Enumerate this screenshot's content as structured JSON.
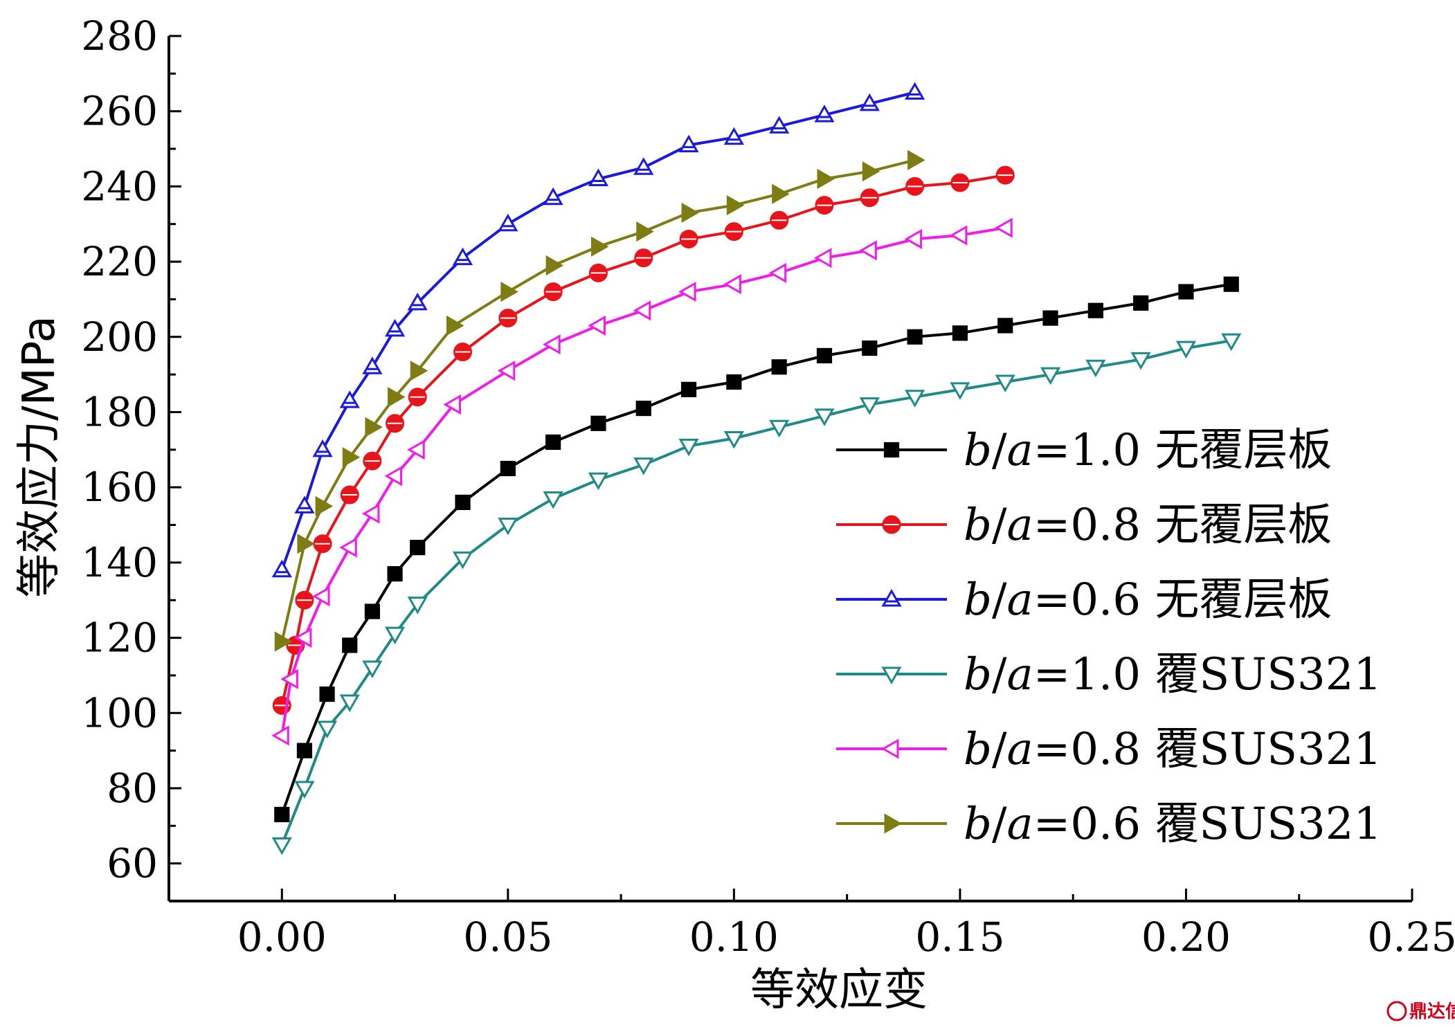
{
  "chart_data": {
    "type": "line",
    "title": "",
    "xlabel": "等效应变",
    "ylabel": "等效应力/MPa",
    "xlim": [
      -0.025,
      0.25
    ],
    "ylim": [
      50,
      280
    ],
    "xticks": [
      "0.00",
      "0.05",
      "0.10",
      "0.15",
      "0.20",
      "0.25"
    ],
    "yticks": [
      "60",
      "80",
      "100",
      "120",
      "140",
      "160",
      "180",
      "200",
      "220",
      "240",
      "260",
      "280"
    ],
    "grid": false,
    "legend_position": "right",
    "series": [
      {
        "name": "b/a=1.0 无覆层板",
        "legend_prefix": "b",
        "legend_mid": "a",
        "legend_suffix": "=1.0 无覆层板",
        "color": "#000000",
        "marker": "square",
        "x": [
          0.0,
          0.005,
          0.01,
          0.015,
          0.02,
          0.025,
          0.03,
          0.04,
          0.05,
          0.06,
          0.07,
          0.08,
          0.09,
          0.1,
          0.11,
          0.12,
          0.13,
          0.14,
          0.15,
          0.16,
          0.17,
          0.18,
          0.19,
          0.2,
          0.21
        ],
        "y": [
          73,
          90,
          105,
          118,
          127,
          137,
          144,
          156,
          165,
          172,
          177,
          181,
          186,
          188,
          192,
          195,
          197,
          200,
          201,
          203,
          205,
          207,
          209,
          212,
          214
        ]
      },
      {
        "name": "b/a=0.8 无覆层板",
        "legend_prefix": "b",
        "legend_mid": "a",
        "legend_suffix": "=0.8 无覆层板",
        "color": "#e8141b",
        "marker": "circle",
        "x": [
          0.0,
          0.003,
          0.005,
          0.009,
          0.015,
          0.02,
          0.025,
          0.03,
          0.04,
          0.05,
          0.06,
          0.07,
          0.08,
          0.09,
          0.1,
          0.11,
          0.12,
          0.13,
          0.14,
          0.15,
          0.16
        ],
        "y": [
          102,
          118,
          130,
          145,
          158,
          167,
          177,
          184,
          196,
          205,
          212,
          217,
          221,
          226,
          228,
          231,
          235,
          237,
          240,
          241,
          243
        ]
      },
      {
        "name": "b/a=0.6 无覆层板",
        "legend_prefix": "b",
        "legend_mid": "a",
        "legend_suffix": "=0.6 无覆层板",
        "color": "#1a1adc",
        "marker": "triangle-up",
        "x": [
          0.0,
          0.005,
          0.009,
          0.015,
          0.02,
          0.025,
          0.03,
          0.04,
          0.05,
          0.06,
          0.07,
          0.08,
          0.09,
          0.1,
          0.11,
          0.12,
          0.13,
          0.14
        ],
        "y": [
          138,
          155,
          170,
          183,
          192,
          202,
          209,
          221,
          230,
          237,
          242,
          245,
          251,
          253,
          256,
          259,
          262,
          265
        ]
      },
      {
        "name": "b/a=1.0 覆SUS321",
        "legend_prefix": "b",
        "legend_mid": "a",
        "legend_suffix": "=1.0 覆SUS321",
        "color": "#1f8a86",
        "marker": "triangle-down",
        "x": [
          0.0,
          0.005,
          0.01,
          0.015,
          0.02,
          0.025,
          0.03,
          0.04,
          0.05,
          0.06,
          0.07,
          0.08,
          0.09,
          0.1,
          0.11,
          0.12,
          0.13,
          0.14,
          0.15,
          0.16,
          0.17,
          0.18,
          0.19,
          0.2,
          0.21
        ],
        "y": [
          65,
          80,
          96,
          103,
          112,
          121,
          129,
          141,
          150,
          157,
          162,
          166,
          171,
          173,
          176,
          179,
          182,
          184,
          186,
          188,
          190,
          192,
          194,
          197,
          199
        ]
      },
      {
        "name": "b/a=0.8 覆SUS321",
        "legend_prefix": "b",
        "legend_mid": "a",
        "legend_suffix": "=0.8 覆SUS321",
        "color": "#ee1ee8",
        "marker": "triangle-left",
        "x": [
          0.0,
          0.002,
          0.005,
          0.009,
          0.015,
          0.02,
          0.025,
          0.03,
          0.038,
          0.05,
          0.06,
          0.07,
          0.08,
          0.09,
          0.1,
          0.11,
          0.12,
          0.13,
          0.14,
          0.15,
          0.16
        ],
        "y": [
          94,
          109,
          120,
          131,
          144,
          153,
          163,
          170,
          182,
          191,
          198,
          203,
          207,
          212,
          214,
          217,
          221,
          223,
          226,
          227,
          229
        ]
      },
      {
        "name": "b/a=0.6 覆SUS321",
        "legend_prefix": "b",
        "legend_mid": "a",
        "legend_suffix": "=0.6 覆SUS321",
        "color": "#7d7d14",
        "marker": "triangle-right",
        "x": [
          0.0,
          0.005,
          0.009,
          0.015,
          0.02,
          0.025,
          0.03,
          0.038,
          0.05,
          0.06,
          0.07,
          0.08,
          0.09,
          0.1,
          0.11,
          0.12,
          0.13,
          0.14
        ],
        "y": [
          119,
          145,
          155,
          168,
          176,
          184,
          191,
          203,
          212,
          219,
          224,
          228,
          233,
          235,
          238,
          242,
          244,
          247
        ]
      }
    ]
  },
  "watermark": {
    "text": "鼎达信"
  }
}
